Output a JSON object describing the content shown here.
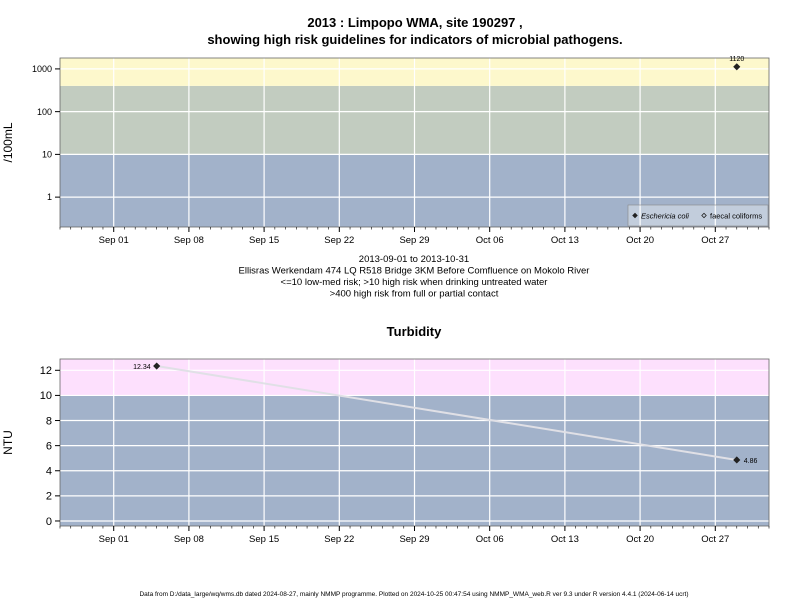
{
  "chart_data": [
    {
      "type": "scatter",
      "title_line1": "2013 : Limpopo WMA, site 190297 ,",
      "title_line2": "showing high risk guidelines for indicators of microbial pathogens.",
      "ylabel": "/100mL",
      "yscale": "log",
      "ylim": [
        0.2,
        1800
      ],
      "yticks": [
        1,
        10,
        100,
        1000
      ],
      "ytick_labels": [
        "1",
        "10",
        "100",
        "1000"
      ],
      "xlim": [
        "2013-08-27",
        "2013-11-01"
      ],
      "xticks": [
        "2013-09-01",
        "2013-09-08",
        "2013-09-15",
        "2013-09-22",
        "2013-09-29",
        "2013-10-06",
        "2013-10-13",
        "2013-10-20",
        "2013-10-27"
      ],
      "xtick_labels": [
        "Sep 01",
        "Sep 08",
        "Sep 15",
        "Sep 22",
        "Sep 29",
        "Oct 06",
        "Oct 13",
        "Oct 20",
        "Oct 27"
      ],
      "bands": [
        {
          "from": 0.2,
          "to": 10,
          "color": "#a2b2ca"
        },
        {
          "from": 10,
          "to": 400,
          "color": "#c2ccc0"
        },
        {
          "from": 400,
          "to": 1800,
          "color": "#fdf8cc"
        }
      ],
      "series": [
        {
          "name": "Eschericia coli",
          "marker": "filled-diamond",
          "points": [
            {
              "x": "2013-10-29",
              "y": 1120,
              "label": "1120"
            }
          ]
        },
        {
          "name": "faecal coliforms",
          "marker": "open-diamond",
          "points": []
        }
      ],
      "legend": "bottom-right",
      "notes": [
        "2013-09-01 to 2013-10-31",
        "Ellisras Werkendam 474 LQ R518 Bridge 3KM Before Comfluence on Mokolo River",
        "<=10 low-med risk; >10 high risk when drinking untreated water",
        ">400 high risk from full or partial contact"
      ]
    },
    {
      "type": "line",
      "title": "Turbidity",
      "ylabel": "NTU",
      "ylim": [
        -0.4,
        12.9
      ],
      "yticks": [
        0,
        2,
        4,
        6,
        8,
        10,
        12
      ],
      "ytick_labels": [
        "0",
        "2",
        "4",
        "6",
        "8",
        "10",
        "12"
      ],
      "xlim": [
        "2013-08-27",
        "2013-11-01"
      ],
      "xticks": [
        "2013-09-01",
        "2013-09-08",
        "2013-09-15",
        "2013-09-22",
        "2013-09-29",
        "2013-10-06",
        "2013-10-13",
        "2013-10-20",
        "2013-10-27"
      ],
      "xtick_labels": [
        "Sep 01",
        "Sep 08",
        "Sep 15",
        "Sep 22",
        "Sep 29",
        "Oct 06",
        "Oct 13",
        "Oct 20",
        "Oct 27"
      ],
      "bands": [
        {
          "from": -0.4,
          "to": 10,
          "color": "#a2b2ca"
        },
        {
          "from": 10,
          "to": 12.9,
          "color": "#fde0fd"
        }
      ],
      "series": [
        {
          "points": [
            {
              "x": "2013-09-05",
              "y": 12.34,
              "label": "12.34"
            },
            {
              "x": "2013-10-29",
              "y": 4.86,
              "label": "4.86"
            }
          ]
        }
      ]
    }
  ],
  "footer": "Data from D:/data_large/wq/wms.db dated 2024-08-27, mainly NMMP programme. Plotted on 2024-10-25 00:47:54 using NMMP_WMA_web.R ver 9.3 under R version 4.4.1 (2024-06-14 ucrt)",
  "colors": {
    "grid": "#ffffff",
    "line": "#e0e0e6",
    "marker": "#222222"
  }
}
